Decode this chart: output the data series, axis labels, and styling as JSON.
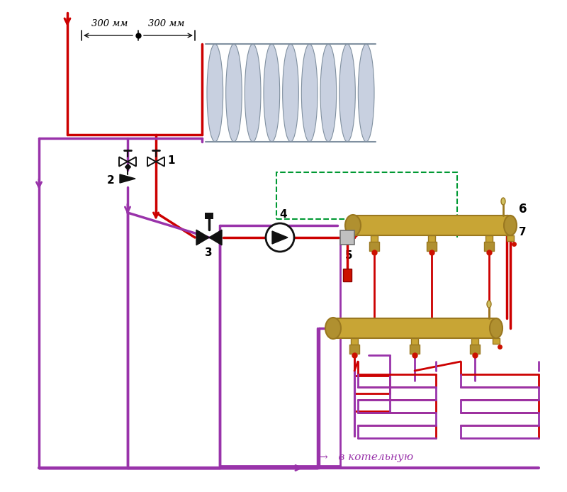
{
  "bg": "#ffffff",
  "red": "#cc0000",
  "purple": "#9933aa",
  "gold": "#c8a030",
  "gold2": "#a07820",
  "green": "#009933",
  "gray_rad": "#c0c8d8",
  "black": "#111111",
  "bottom_text": "→   в котельную",
  "dim_text_1": "300 мм",
  "dim_text_2": "300 мм",
  "labels": [
    "1",
    "2",
    "3",
    "4",
    "5",
    "6",
    "7"
  ]
}
